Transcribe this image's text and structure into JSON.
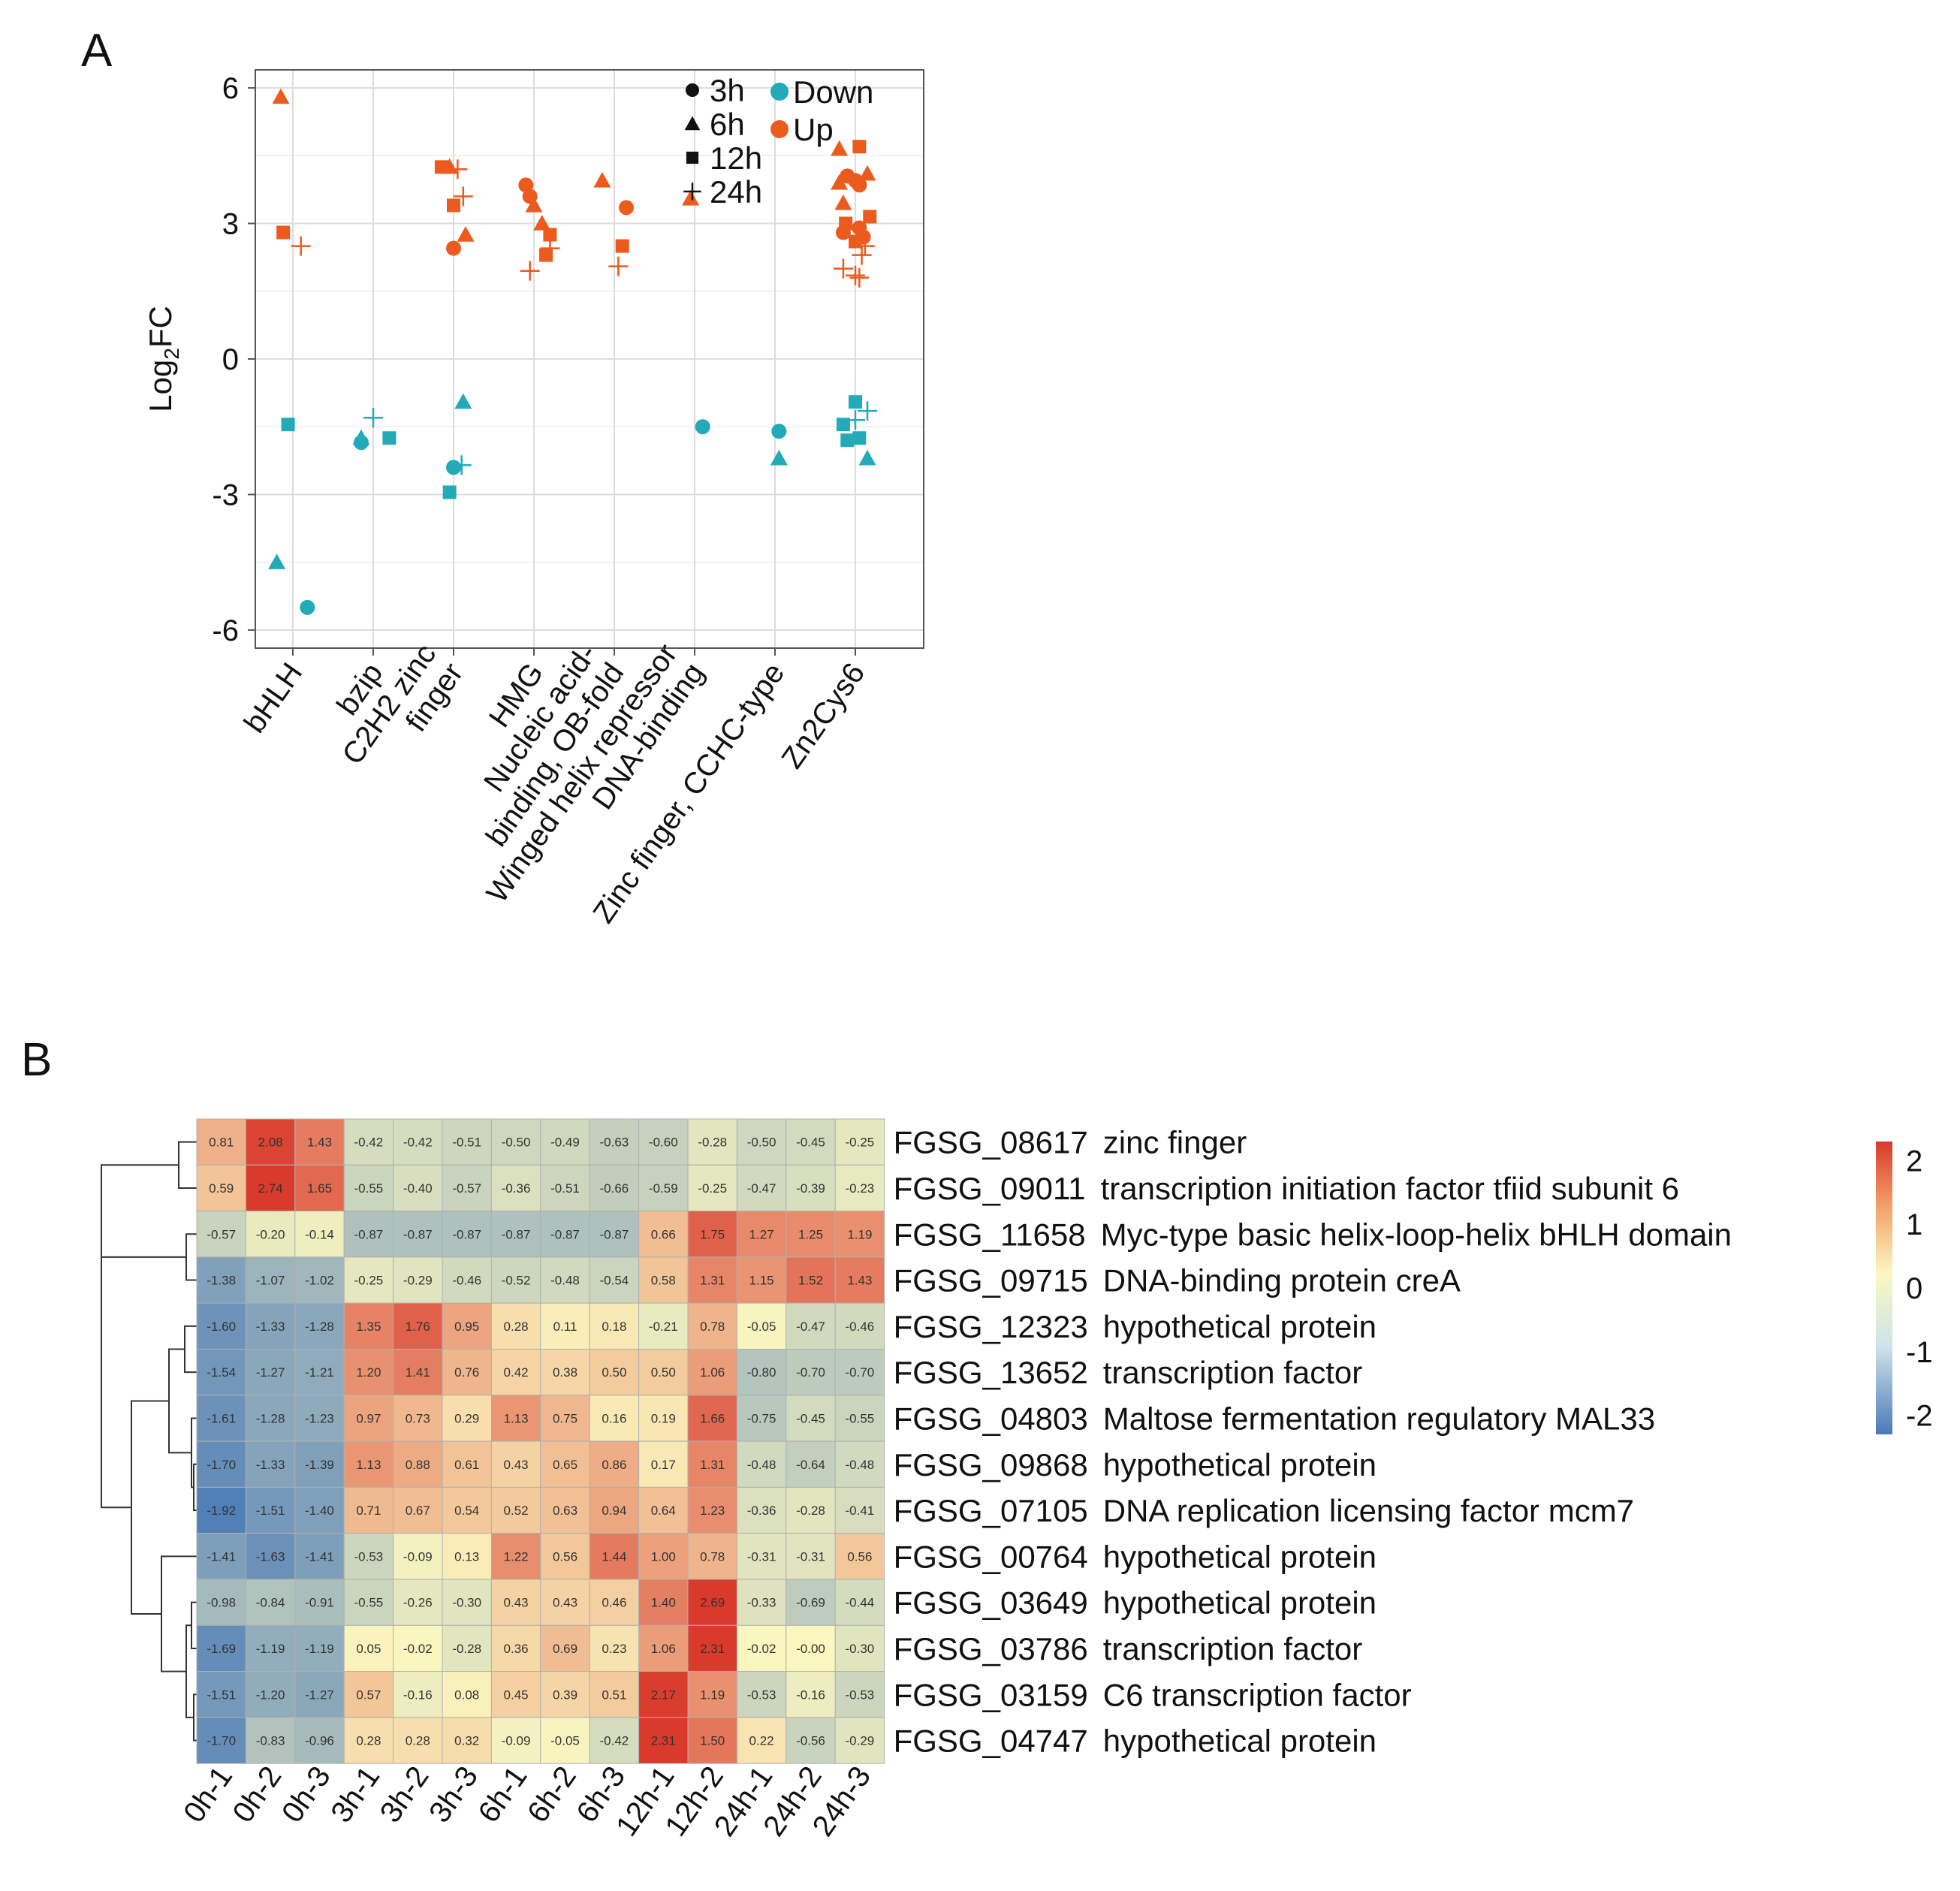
{
  "chart_data": [
    {
      "panel": "A",
      "type": "scatter",
      "ylabel": "Log2FC",
      "ylabel_main": "Log",
      "ylabel_sub": "2",
      "ylabel_tail": "FC",
      "ylim": [
        -6,
        6.5
      ],
      "yticks": [
        "6",
        "3",
        "0",
        "-3",
        "-6"
      ],
      "ytick_values": [
        6,
        3,
        0,
        -3,
        -6
      ],
      "categories": [
        "bHLH",
        "bzip",
        "C2H2 zinc finger",
        "HMG",
        "Nucleic acid-binding, OB-fold",
        "Winged helix repressor DNA-binding",
        "Zinc finger, CCHC-type",
        "Zn2Cys6"
      ],
      "category_label_lines": [
        [
          "bHLH"
        ],
        [
          "bzip"
        ],
        [
          "C2H2 zinc",
          "finger"
        ],
        [
          "HMG"
        ],
        [
          "Nucleic acid-",
          "binding, OB-fold"
        ],
        [
          "Winged helix repressor",
          "DNA-binding"
        ],
        [
          "Zinc finger, CCHC-type"
        ],
        [
          "Zn2Cys6"
        ]
      ],
      "legend": {
        "shapes": [
          {
            "label": "3h",
            "shape": "circle"
          },
          {
            "label": "6h",
            "shape": "triangle"
          },
          {
            "label": "12h",
            "shape": "square"
          },
          {
            "label": "24h",
            "shape": "plus"
          }
        ],
        "colors": [
          {
            "label": "Down",
            "color": "#22aab8"
          },
          {
            "label": "Up",
            "color": "#ec5a1e"
          }
        ]
      },
      "points": [
        {
          "cat": 0,
          "off": -0.15,
          "y": 5.8,
          "time": "6h",
          "dir": "Up"
        },
        {
          "cat": 0,
          "off": -0.12,
          "y": 2.8,
          "time": "12h",
          "dir": "Up"
        },
        {
          "cat": 0,
          "off": 0.1,
          "y": 2.5,
          "time": "24h",
          "dir": "Up"
        },
        {
          "cat": 0,
          "off": -0.06,
          "y": -1.45,
          "time": "12h",
          "dir": "Down"
        },
        {
          "cat": 0,
          "off": -0.2,
          "y": -4.5,
          "time": "6h",
          "dir": "Down"
        },
        {
          "cat": 0,
          "off": 0.18,
          "y": -5.5,
          "time": "3h",
          "dir": "Down"
        },
        {
          "cat": 1,
          "off": -0.15,
          "y": -1.75,
          "time": "6h",
          "dir": "Down"
        },
        {
          "cat": 1,
          "off": -0.15,
          "y": -1.85,
          "time": "3h",
          "dir": "Down"
        },
        {
          "cat": 1,
          "off": 0.0,
          "y": -1.3,
          "time": "24h",
          "dir": "Down"
        },
        {
          "cat": 1,
          "off": 0.2,
          "y": -1.75,
          "time": "12h",
          "dir": "Down"
        },
        {
          "cat": 2,
          "off": -0.15,
          "y": 4.25,
          "time": "12h",
          "dir": "Up"
        },
        {
          "cat": 2,
          "off": -0.05,
          "y": 4.25,
          "time": "6h",
          "dir": "Up"
        },
        {
          "cat": 2,
          "off": 0.05,
          "y": 4.2,
          "time": "24h",
          "dir": "Up"
        },
        {
          "cat": 2,
          "off": 0.0,
          "y": 3.4,
          "time": "12h",
          "dir": "Up"
        },
        {
          "cat": 2,
          "off": 0.12,
          "y": 3.6,
          "time": "24h",
          "dir": "Up"
        },
        {
          "cat": 2,
          "off": 0.15,
          "y": 2.75,
          "time": "6h",
          "dir": "Up"
        },
        {
          "cat": 2,
          "off": 0.0,
          "y": 2.45,
          "time": "3h",
          "dir": "Up"
        },
        {
          "cat": 2,
          "off": 0.12,
          "y": -0.95,
          "time": "6h",
          "dir": "Down"
        },
        {
          "cat": 2,
          "off": 0.0,
          "y": -2.4,
          "time": "3h",
          "dir": "Down"
        },
        {
          "cat": 2,
          "off": 0.1,
          "y": -2.35,
          "time": "24h",
          "dir": "Down"
        },
        {
          "cat": 2,
          "off": -0.05,
          "y": -2.95,
          "time": "12h",
          "dir": "Down"
        },
        {
          "cat": 3,
          "off": -0.1,
          "y": 3.85,
          "time": "3h",
          "dir": "Up"
        },
        {
          "cat": 3,
          "off": -0.05,
          "y": 3.6,
          "time": "3h",
          "dir": "Up"
        },
        {
          "cat": 3,
          "off": 0.0,
          "y": 3.4,
          "time": "6h",
          "dir": "Up"
        },
        {
          "cat": 3,
          "off": 0.1,
          "y": 3.0,
          "time": "6h",
          "dir": "Up"
        },
        {
          "cat": 3,
          "off": 0.2,
          "y": 2.75,
          "time": "12h",
          "dir": "Up"
        },
        {
          "cat": 3,
          "off": 0.2,
          "y": 2.45,
          "time": "24h",
          "dir": "Up"
        },
        {
          "cat": 3,
          "off": 0.15,
          "y": 2.3,
          "time": "12h",
          "dir": "Up"
        },
        {
          "cat": 3,
          "off": -0.05,
          "y": 1.95,
          "time": "24h",
          "dir": "Up"
        },
        {
          "cat": 4,
          "off": -0.15,
          "y": 3.95,
          "time": "6h",
          "dir": "Up"
        },
        {
          "cat": 4,
          "off": 0.15,
          "y": 3.35,
          "time": "3h",
          "dir": "Up"
        },
        {
          "cat": 4,
          "off": 0.1,
          "y": 2.5,
          "time": "12h",
          "dir": "Up"
        },
        {
          "cat": 4,
          "off": 0.05,
          "y": 2.05,
          "time": "24h",
          "dir": "Up"
        },
        {
          "cat": 5,
          "off": -0.05,
          "y": 3.55,
          "time": "6h",
          "dir": "Up"
        },
        {
          "cat": 5,
          "off": 0.1,
          "y": -1.5,
          "time": "3h",
          "dir": "Down"
        },
        {
          "cat": 6,
          "off": 0.05,
          "y": -1.6,
          "time": "3h",
          "dir": "Down"
        },
        {
          "cat": 6,
          "off": 0.05,
          "y": -2.2,
          "time": "6h",
          "dir": "Down"
        },
        {
          "cat": 7,
          "off": -0.2,
          "y": 4.65,
          "time": "6h",
          "dir": "Up"
        },
        {
          "cat": 7,
          "off": 0.05,
          "y": 4.7,
          "time": "12h",
          "dir": "Up"
        },
        {
          "cat": 7,
          "off": 0.15,
          "y": 4.1,
          "time": "6h",
          "dir": "Up"
        },
        {
          "cat": 7,
          "off": -0.2,
          "y": 3.9,
          "time": "6h",
          "dir": "Up"
        },
        {
          "cat": 7,
          "off": -0.1,
          "y": 4.05,
          "time": "3h",
          "dir": "Up"
        },
        {
          "cat": 7,
          "off": 0.0,
          "y": 3.95,
          "time": "3h",
          "dir": "Up"
        },
        {
          "cat": 7,
          "off": 0.05,
          "y": 3.85,
          "time": "3h",
          "dir": "Up"
        },
        {
          "cat": 7,
          "off": -0.15,
          "y": 3.45,
          "time": "6h",
          "dir": "Up"
        },
        {
          "cat": 7,
          "off": 0.18,
          "y": 3.15,
          "time": "12h",
          "dir": "Up"
        },
        {
          "cat": 7,
          "off": -0.12,
          "y": 3.0,
          "time": "12h",
          "dir": "Up"
        },
        {
          "cat": 7,
          "off": -0.15,
          "y": 2.8,
          "time": "3h",
          "dir": "Up"
        },
        {
          "cat": 7,
          "off": 0.05,
          "y": 2.9,
          "time": "3h",
          "dir": "Up"
        },
        {
          "cat": 7,
          "off": 0.1,
          "y": 2.7,
          "time": "3h",
          "dir": "Up"
        },
        {
          "cat": 7,
          "off": 0.0,
          "y": 2.6,
          "time": "12h",
          "dir": "Up"
        },
        {
          "cat": 7,
          "off": 0.12,
          "y": 2.5,
          "time": "24h",
          "dir": "Up"
        },
        {
          "cat": 7,
          "off": 0.08,
          "y": 2.3,
          "time": "24h",
          "dir": "Up"
        },
        {
          "cat": 7,
          "off": -0.15,
          "y": 2.0,
          "time": "24h",
          "dir": "Up"
        },
        {
          "cat": 7,
          "off": 0.0,
          "y": 1.85,
          "time": "24h",
          "dir": "Up"
        },
        {
          "cat": 7,
          "off": 0.05,
          "y": 1.8,
          "time": "24h",
          "dir": "Up"
        },
        {
          "cat": 7,
          "off": 0.0,
          "y": -0.95,
          "time": "12h",
          "dir": "Down"
        },
        {
          "cat": 7,
          "off": 0.15,
          "y": -1.15,
          "time": "24h",
          "dir": "Down"
        },
        {
          "cat": 7,
          "off": 0.0,
          "y": -1.35,
          "time": "24h",
          "dir": "Down"
        },
        {
          "cat": 7,
          "off": -0.15,
          "y": -1.45,
          "time": "12h",
          "dir": "Down"
        },
        {
          "cat": 7,
          "off": -0.1,
          "y": -1.8,
          "time": "12h",
          "dir": "Down"
        },
        {
          "cat": 7,
          "off": 0.05,
          "y": -1.75,
          "time": "12h",
          "dir": "Down"
        },
        {
          "cat": 7,
          "off": 0.15,
          "y": -2.2,
          "time": "6h",
          "dir": "Down"
        }
      ]
    },
    {
      "panel": "B",
      "type": "heatmap",
      "columns": [
        "0h-1",
        "0h-2",
        "0h-3",
        "3h-1",
        "3h-2",
        "3h-3",
        "6h-1",
        "6h-2",
        "6h-3",
        "12h-1",
        "12h-2",
        "24h-1",
        "24h-2",
        "24h-3"
      ],
      "rows": [
        {
          "id": "FGSG_08617",
          "desc": "zinc finger",
          "values": [
            "0.81",
            "2.08",
            "1.43",
            "-0.42",
            "-0.42",
            "-0.51",
            "-0.50",
            "-0.49",
            "-0.63",
            "-0.60",
            "-0.28",
            "-0.50",
            "-0.45",
            "-0.25"
          ]
        },
        {
          "id": "FGSG_09011",
          "desc": "transcription initiation factor tfiid subunit 6",
          "values": [
            "0.59",
            "2.74",
            "1.65",
            "-0.55",
            "-0.40",
            "-0.57",
            "-0.36",
            "-0.51",
            "-0.66",
            "-0.59",
            "-0.25",
            "-0.47",
            "-0.39",
            "-0.23"
          ]
        },
        {
          "id": "FGSG_11658",
          "desc": "Myc-type basic helix-loop-helix bHLH domain",
          "values": [
            "-0.57",
            "-0.20",
            "-0.14",
            "-0.87",
            "-0.87",
            "-0.87",
            "-0.87",
            "-0.87",
            "-0.87",
            "0.66",
            "1.75",
            "1.27",
            "1.25",
            "1.19"
          ]
        },
        {
          "id": "FGSG_09715",
          "desc": "DNA-binding protein creA",
          "values": [
            "-1.38",
            "-1.07",
            "-1.02",
            "-0.25",
            "-0.29",
            "-0.46",
            "-0.52",
            "-0.48",
            "-0.54",
            "0.58",
            "1.31",
            "1.15",
            "1.52",
            "1.43"
          ]
        },
        {
          "id": "FGSG_12323",
          "desc": "hypothetical protein",
          "values": [
            "-1.60",
            "-1.33",
            "-1.28",
            "1.35",
            "1.76",
            "0.95",
            "0.28",
            "0.11",
            "0.18",
            "-0.21",
            "0.78",
            "-0.05",
            "-0.47",
            "-0.46"
          ]
        },
        {
          "id": "FGSG_13652",
          "desc": "transcription factor",
          "values": [
            "-1.54",
            "-1.27",
            "-1.21",
            "1.20",
            "1.41",
            "0.76",
            "0.42",
            "0.38",
            "0.50",
            "0.50",
            "1.06",
            "-0.80",
            "-0.70",
            "-0.70"
          ]
        },
        {
          "id": "FGSG_04803",
          "desc": "Maltose fermentation regulatory MAL33",
          "values": [
            "-1.61",
            "-1.28",
            "-1.23",
            "0.97",
            "0.73",
            "0.29",
            "1.13",
            "0.75",
            "0.16",
            "0.19",
            "1.66",
            "-0.75",
            "-0.45",
            "-0.55"
          ]
        },
        {
          "id": "FGSG_09868",
          "desc": "hypothetical protein",
          "values": [
            "-1.70",
            "-1.33",
            "-1.39",
            "1.13",
            "0.88",
            "0.61",
            "0.43",
            "0.65",
            "0.86",
            "0.17",
            "1.31",
            "-0.48",
            "-0.64",
            "-0.48"
          ]
        },
        {
          "id": "FGSG_07105",
          "desc": "DNA replication licensing factor mcm7",
          "values": [
            "-1.92",
            "-1.51",
            "-1.40",
            "0.71",
            "0.67",
            "0.54",
            "0.52",
            "0.63",
            "0.94",
            "0.64",
            "1.23",
            "-0.36",
            "-0.28",
            "-0.41"
          ]
        },
        {
          "id": "FGSG_00764",
          "desc": "hypothetical protein",
          "values": [
            "-1.41",
            "-1.63",
            "-1.41",
            "-0.53",
            "-0.09",
            "0.13",
            "1.22",
            "0.56",
            "1.44",
            "1.00",
            "0.78",
            "-0.31",
            "-0.31",
            "0.56"
          ]
        },
        {
          "id": "FGSG_03649",
          "desc": "hypothetical protein",
          "values": [
            "-0.98",
            "-0.84",
            "-0.91",
            "-0.55",
            "-0.26",
            "-0.30",
            "0.43",
            "0.43",
            "0.46",
            "1.40",
            "2.69",
            "-0.33",
            "-0.69",
            "-0.44"
          ]
        },
        {
          "id": "FGSG_03786",
          "desc": "transcription factor",
          "values": [
            "-1.69",
            "-1.19",
            "-1.19",
            "0.05",
            "-0.02",
            "-0.28",
            "0.36",
            "0.69",
            "0.23",
            "1.06",
            "2.31",
            "-0.02",
            "-0.00",
            "-0.30"
          ]
        },
        {
          "id": "FGSG_03159",
          "desc": "C6 transcription factor",
          "values": [
            "-1.51",
            "-1.20",
            "-1.27",
            "0.57",
            "-0.16",
            "0.08",
            "0.45",
            "0.39",
            "0.51",
            "2.17",
            "1.19",
            "-0.53",
            "-0.16",
            "-0.53"
          ]
        },
        {
          "id": "FGSG_04747",
          "desc": "hypothetical protein",
          "values": [
            "-1.70",
            "-0.83",
            "-0.96",
            "0.28",
            "0.28",
            "0.32",
            "-0.09",
            "-0.05",
            "-0.42",
            "2.31",
            "1.50",
            "0.22",
            "-0.56",
            "-0.29"
          ]
        }
      ],
      "colorbar": {
        "ticks": [
          "2",
          "1",
          "0",
          "-1",
          "-2"
        ],
        "tick_values": [
          2,
          1,
          0,
          -1,
          -2
        ],
        "low": "#4a7ab8",
        "mid": "#fbf7c0",
        "high": "#d93a2b"
      }
    }
  ],
  "panel_labels": {
    "a": "A",
    "b": "B"
  }
}
